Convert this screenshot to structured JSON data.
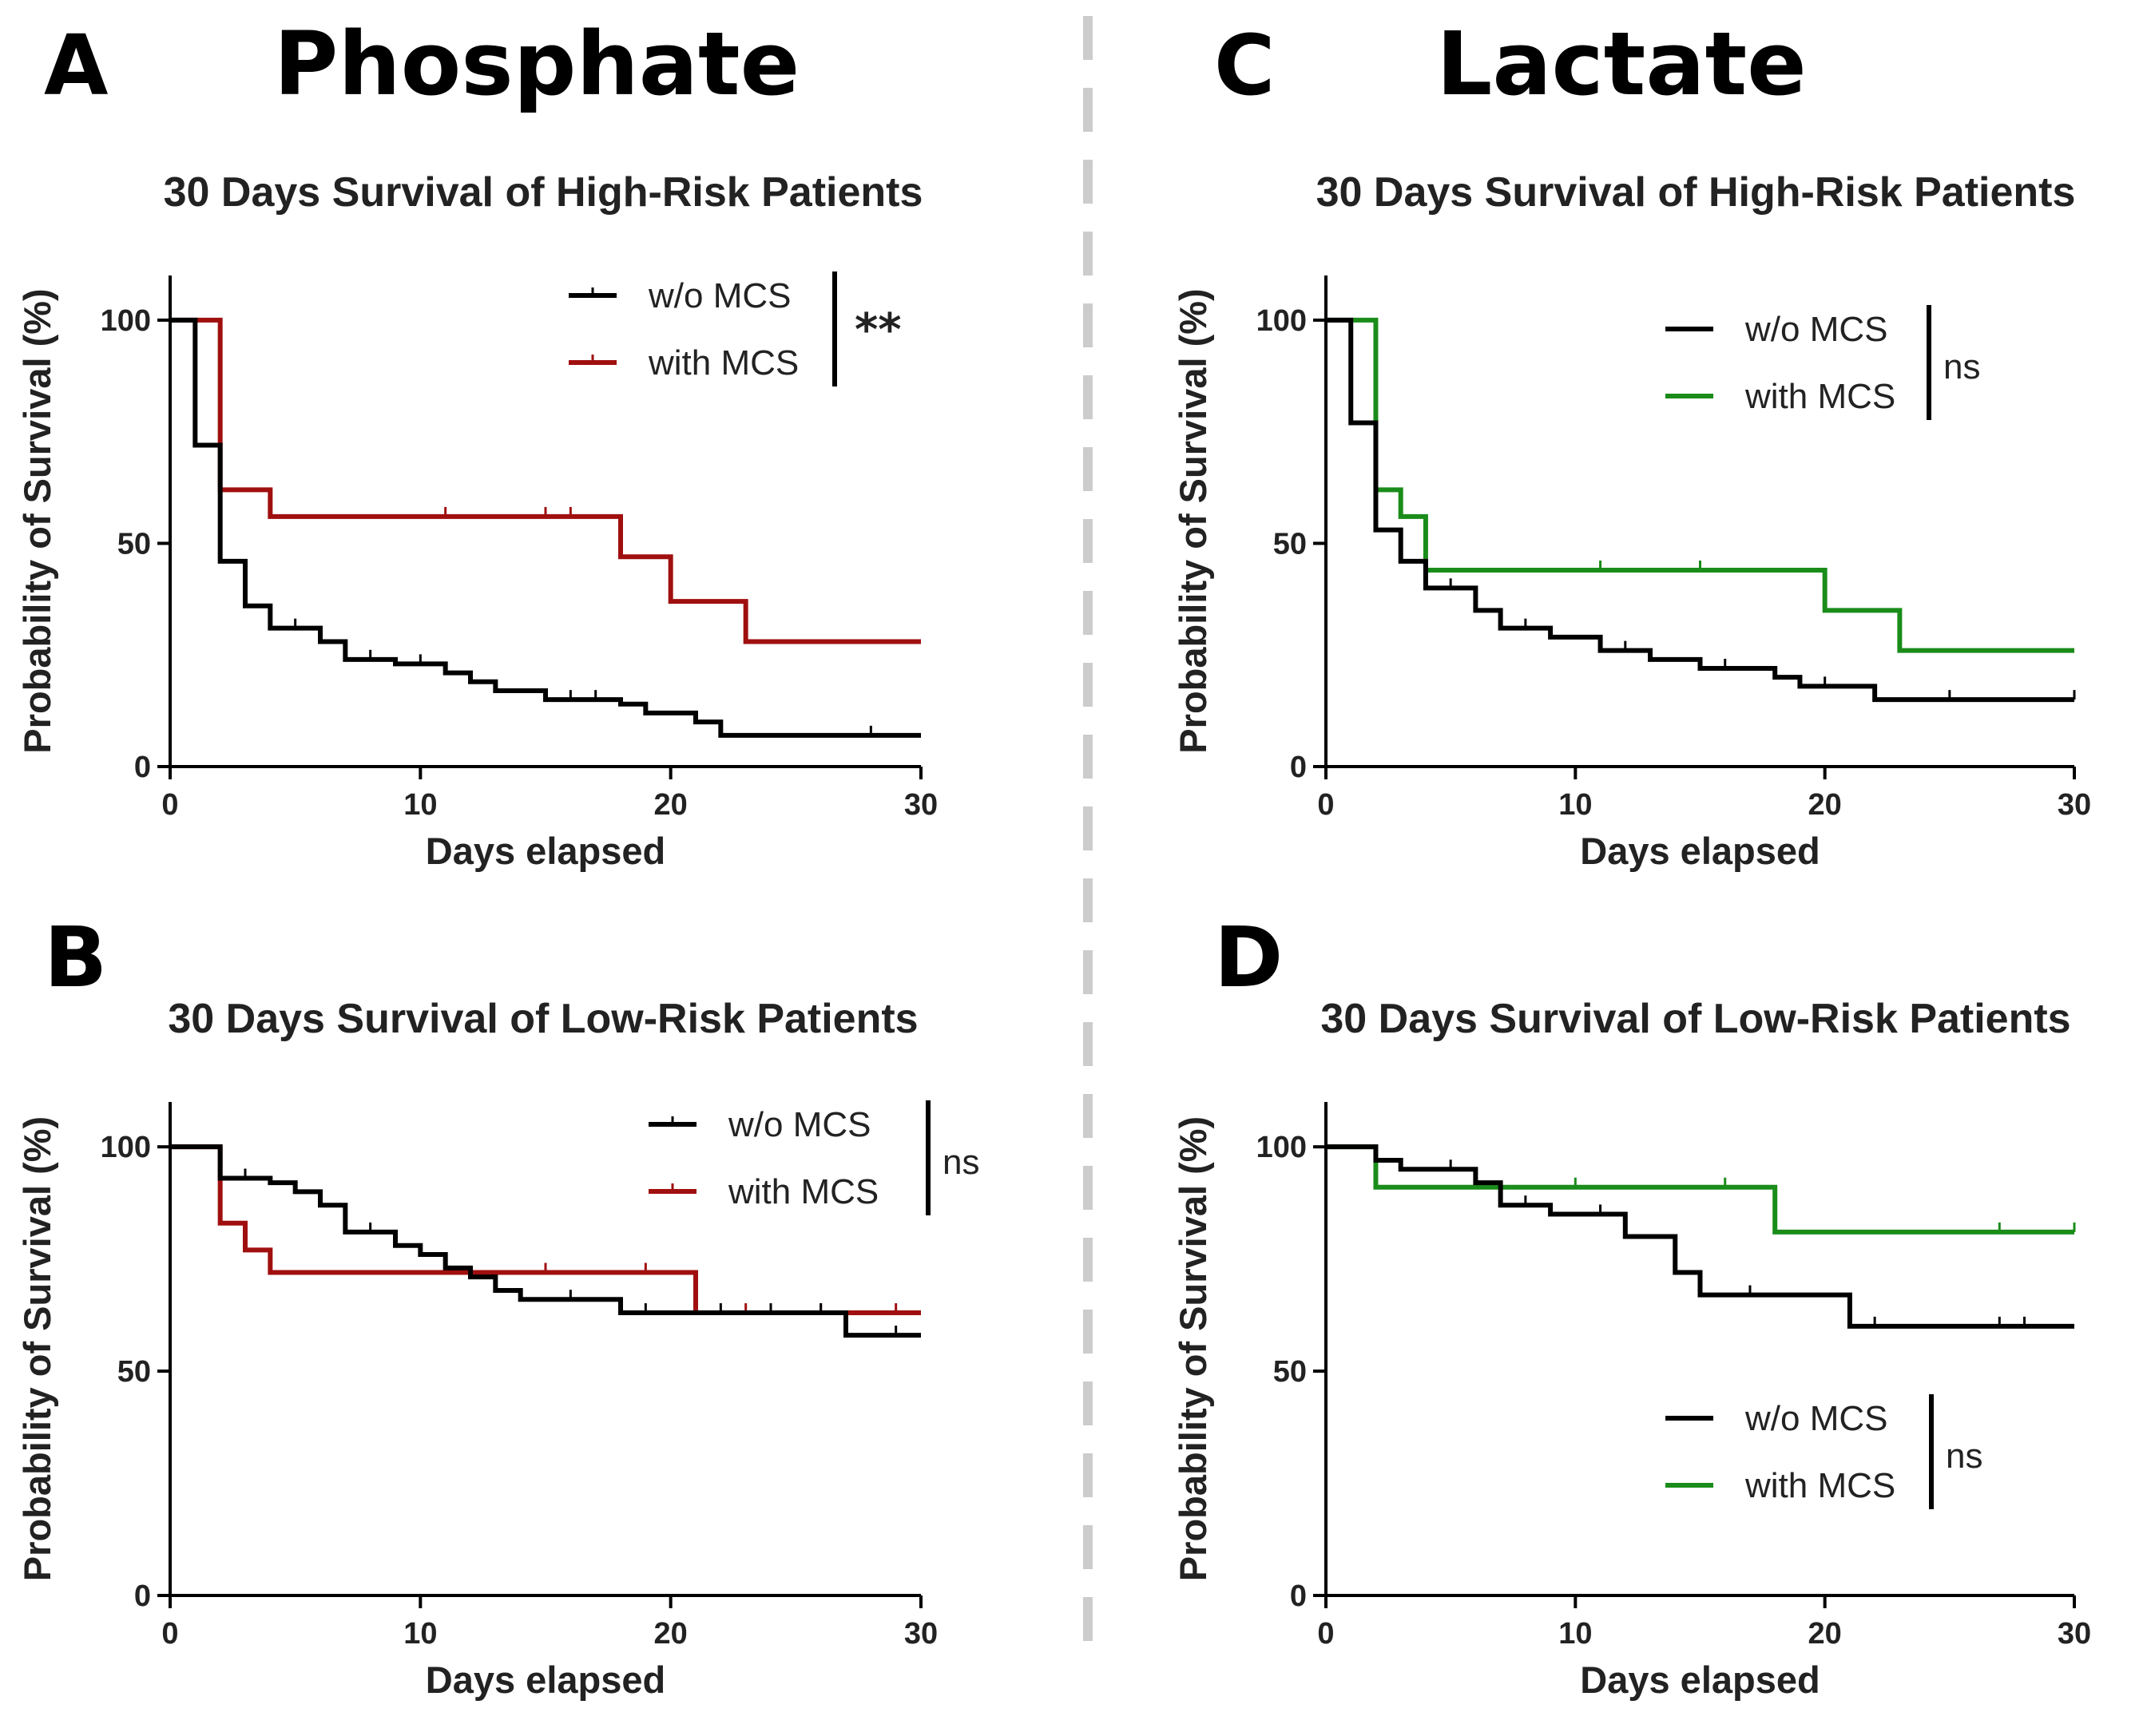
{
  "groups": [
    {
      "letter_panel": "A",
      "title": "Phosphate"
    },
    {
      "letter_panel": "C",
      "title": "Lactate"
    }
  ],
  "colors": {
    "black": "#000000",
    "red": "#a00f0f",
    "green": "#1a8c1a",
    "divider": "#cccccc"
  },
  "chart_data": [
    {
      "panel": "A",
      "type": "line",
      "subtype": "kaplan-meier step",
      "title": "30 Days Survival of High-Risk Patients",
      "xlabel": "Days elapsed",
      "ylabel": "Probability of Survival (%)",
      "xlim": [
        0,
        30
      ],
      "ylim": [
        0,
        110
      ],
      "xticks": [
        "0",
        "10",
        "20",
        "30"
      ],
      "yticks": [
        "0",
        "50",
        "100"
      ],
      "legend_position": "top-right",
      "significance": "**",
      "series": [
        {
          "name": "w/o MCS",
          "color": "#000000",
          "x": [
            0,
            1,
            2,
            3,
            4,
            6,
            7,
            9,
            11,
            12,
            13,
            15,
            18,
            19,
            21,
            22,
            30
          ],
          "y": [
            100,
            72,
            46,
            36,
            31,
            28,
            24,
            23,
            21,
            19,
            17,
            15,
            14,
            12,
            10,
            7,
            7
          ],
          "censor_x": [
            5,
            8,
            10,
            16,
            17,
            28
          ]
        },
        {
          "name": "with MCS",
          "color": "#a00f0f",
          "x": [
            0,
            2,
            4,
            18,
            20,
            23,
            30
          ],
          "y": [
            100,
            62,
            56,
            47,
            37,
            28,
            28
          ],
          "censor_x": [
            11,
            15,
            16
          ]
        }
      ]
    },
    {
      "panel": "B",
      "type": "line",
      "subtype": "kaplan-meier step",
      "title": "30 Days Survival of Low-Risk Patients",
      "xlabel": "Days elapsed",
      "ylabel": "Probability of Survival (%)",
      "xlim": [
        0,
        30
      ],
      "ylim": [
        0,
        110
      ],
      "xticks": [
        "0",
        "10",
        "20",
        "30"
      ],
      "yticks": [
        "0",
        "50",
        "100"
      ],
      "legend_position": "top-right",
      "significance": "ns",
      "series": [
        {
          "name": "w/o MCS",
          "color": "#000000",
          "x": [
            0,
            2,
            4,
            5,
            6,
            7,
            9,
            10,
            11,
            12,
            13,
            14,
            18,
            27,
            30
          ],
          "y": [
            100,
            93,
            92,
            90,
            87,
            81,
            78,
            76,
            73,
            71,
            68,
            66,
            63,
            58,
            58
          ],
          "censor_x": [
            3,
            8,
            16,
            19,
            22,
            24,
            26,
            29
          ]
        },
        {
          "name": "with MCS",
          "color": "#a00f0f",
          "x": [
            0,
            2,
            3,
            4,
            21,
            30
          ],
          "y": [
            100,
            83,
            77,
            72,
            63,
            63
          ],
          "censor_x": [
            15,
            19,
            23,
            26,
            29
          ]
        }
      ]
    },
    {
      "panel": "C",
      "type": "line",
      "subtype": "kaplan-meier step",
      "title": "30 Days Survival of High-Risk Patients",
      "xlabel": "Days elapsed",
      "ylabel": "Probability of Survival (%)",
      "xlim": [
        0,
        30
      ],
      "ylim": [
        0,
        110
      ],
      "xticks": [
        "0",
        "10",
        "20",
        "30"
      ],
      "yticks": [
        "0",
        "50",
        "100"
      ],
      "legend_position": "top-right",
      "significance": "ns",
      "series": [
        {
          "name": "w/o MCS",
          "color": "#000000",
          "x": [
            0,
            1,
            2,
            3,
            4,
            6,
            7,
            9,
            11,
            13,
            15,
            18,
            19,
            22,
            30
          ],
          "y": [
            100,
            77,
            53,
            46,
            40,
            35,
            31,
            29,
            26,
            24,
            22,
            20,
            18,
            15,
            15
          ],
          "censor_x": [
            5,
            8,
            12,
            16,
            20,
            25,
            30
          ]
        },
        {
          "name": "with MCS",
          "color": "#1a8c1a",
          "x": [
            0,
            2,
            3,
            4,
            20,
            23,
            30
          ],
          "y": [
            100,
            62,
            56,
            44,
            35,
            26,
            26
          ],
          "censor_x": [
            11,
            15
          ]
        }
      ]
    },
    {
      "panel": "D",
      "type": "line",
      "subtype": "kaplan-meier step",
      "title": "30 Days Survival of Low-Risk Patients",
      "xlabel": "Days elapsed",
      "ylabel": "Probability of Survival (%)",
      "xlim": [
        0,
        30
      ],
      "ylim": [
        0,
        110
      ],
      "xticks": [
        "0",
        "10",
        "20",
        "30"
      ],
      "yticks": [
        "0",
        "50",
        "100"
      ],
      "legend_position": "bottom-right",
      "significance": "ns",
      "series": [
        {
          "name": "w/o MCS",
          "color": "#000000",
          "x": [
            0,
            2,
            3,
            6,
            7,
            9,
            12,
            14,
            15,
            21,
            30
          ],
          "y": [
            100,
            97,
            95,
            92,
            87,
            85,
            80,
            72,
            67,
            60,
            60
          ],
          "censor_x": [
            5,
            8,
            11,
            17,
            22,
            27,
            28
          ]
        },
        {
          "name": "with MCS",
          "color": "#1a8c1a",
          "x": [
            0,
            2,
            18,
            30
          ],
          "y": [
            100,
            91,
            81,
            81
          ],
          "censor_x": [
            10,
            16,
            27,
            30
          ]
        }
      ]
    }
  ]
}
